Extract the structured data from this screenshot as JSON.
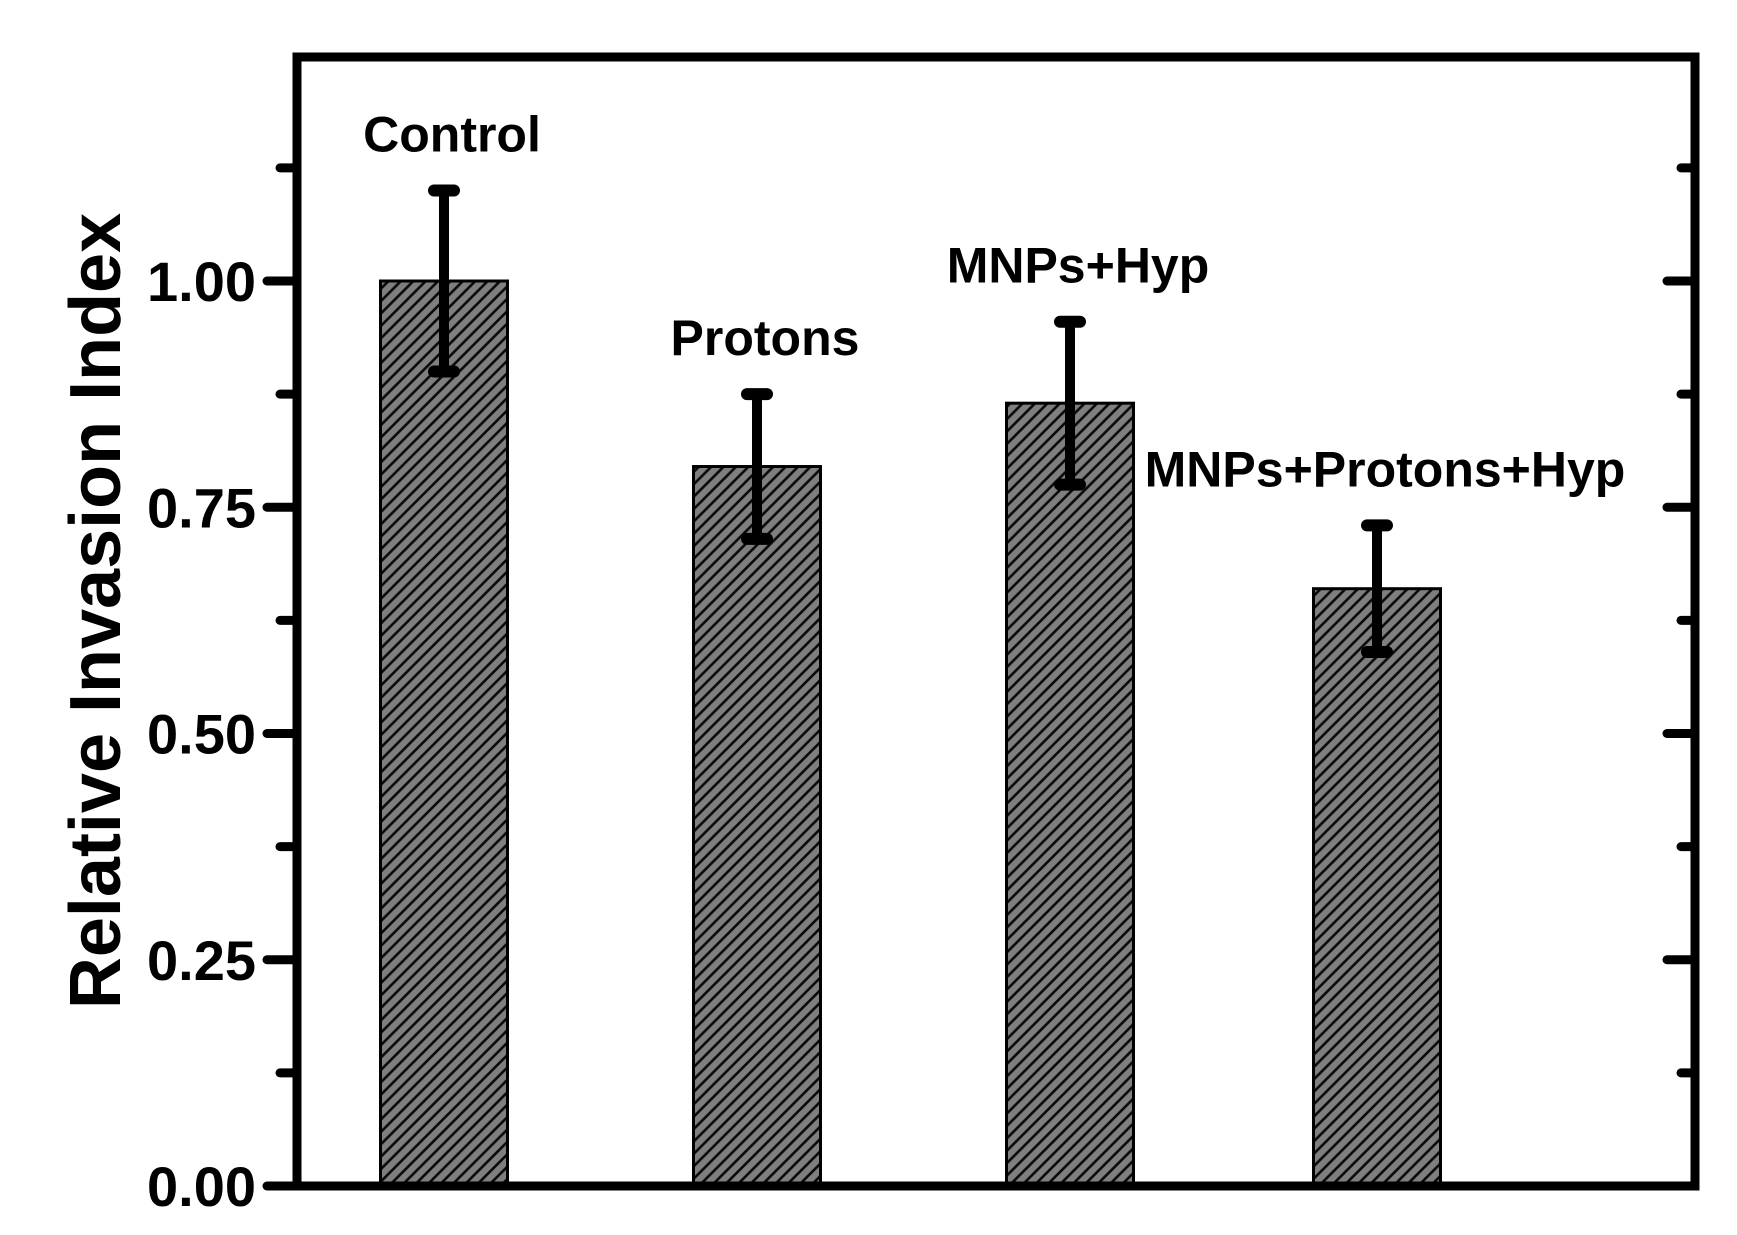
{
  "chart_data": {
    "type": "bar",
    "title": "",
    "ylabel": "Relative Invasion Index",
    "xlabel": "",
    "categories": [
      "Control",
      "Protons",
      "MNPs+Hyp",
      "MNPs+Protons+Hyp"
    ],
    "values": [
      1.0,
      0.795,
      0.865,
      0.66
    ],
    "errors": [
      0.1,
      0.08,
      0.09,
      0.07
    ],
    "ylim": [
      0,
      1.25
    ],
    "ytick_values": [
      0.0,
      0.25,
      0.5,
      0.75,
      1.0
    ],
    "ytick_labels": [
      "0.00",
      "0.25",
      "0.50",
      "0.75",
      "1.00"
    ],
    "ytick_minor": [
      0.125,
      0.375,
      0.625,
      0.875,
      1.125
    ],
    "grid": false,
    "legend": "none",
    "bar_style": {
      "fill": "#7f7f7f",
      "hatch": "/",
      "hatch_color": "#0a0a0a",
      "edge_color": "#000000"
    },
    "error_bar_color": "#000000",
    "axis_color": "#000000",
    "background": "#ffffff"
  }
}
